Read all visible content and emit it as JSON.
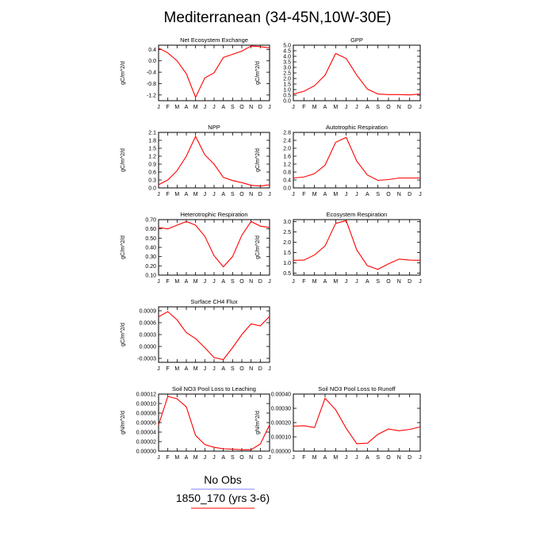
{
  "figure": {
    "title": "Mediterranean (34-45N,10W-30E)"
  },
  "months": [
    "J",
    "F",
    "M",
    "A",
    "M",
    "J",
    "J",
    "A",
    "S",
    "O",
    "N",
    "D",
    "J"
  ],
  "colors": {
    "model_line": "#ff0000",
    "obs_line": "#7f7fff",
    "axis": "#000000"
  },
  "legend": {
    "obs_label": "No Obs",
    "model_label": "1850_170 (yrs 3-6)"
  },
  "chart_data": [
    {
      "id": "nee",
      "type": "line",
      "title": "Net Ecosystem Exchange",
      "ylabel": "gC/m^2/d",
      "ylim": [
        -1.4,
        0.55
      ],
      "yticks": [
        -1.2,
        -0.8,
        -0.4,
        0.0,
        0.4
      ],
      "tick_format": "1",
      "x": [
        "J",
        "F",
        "M",
        "A",
        "M",
        "J",
        "J",
        "A",
        "S",
        "O",
        "N",
        "D",
        "J"
      ],
      "series": [
        {
          "values": [
            0.45,
            0.28,
            0.0,
            -0.45,
            -1.28,
            -0.6,
            -0.42,
            0.12,
            0.23,
            0.34,
            0.52,
            0.5,
            0.45
          ]
        }
      ]
    },
    {
      "id": "gpp",
      "type": "line",
      "title": "GPP",
      "ylabel": "gC/m^2/d",
      "ylim": [
        0.0,
        5.0
      ],
      "yticks": [
        0.0,
        0.5,
        1.0,
        1.5,
        2.0,
        2.5,
        3.0,
        3.5,
        4.0,
        4.5,
        5.0
      ],
      "tick_format": "1",
      "x": [
        "J",
        "F",
        "M",
        "A",
        "M",
        "J",
        "J",
        "A",
        "S",
        "O",
        "N",
        "D",
        "J"
      ],
      "series": [
        {
          "values": [
            0.6,
            0.85,
            1.35,
            2.3,
            4.25,
            3.8,
            2.3,
            1.05,
            0.6,
            0.55,
            0.55,
            0.52,
            0.6
          ]
        }
      ]
    },
    {
      "id": "npp",
      "type": "line",
      "title": "NPP",
      "ylabel": "gC/m^2/d",
      "ylim": [
        0.0,
        2.1
      ],
      "yticks": [
        0.0,
        0.3,
        0.6,
        0.9,
        1.2,
        1.5,
        1.8,
        2.1
      ],
      "tick_format": "1",
      "x": [
        "J",
        "F",
        "M",
        "A",
        "M",
        "J",
        "J",
        "A",
        "S",
        "O",
        "N",
        "D",
        "J"
      ],
      "series": [
        {
          "values": [
            0.12,
            0.3,
            0.65,
            1.2,
            1.95,
            1.25,
            0.9,
            0.4,
            0.28,
            0.2,
            0.1,
            0.07,
            0.12
          ]
        }
      ]
    },
    {
      "id": "ar",
      "type": "line",
      "title": "Autotrophic Respiration",
      "ylabel": "gC/m^2/d",
      "ylim": [
        0.0,
        2.8
      ],
      "yticks": [
        0.0,
        0.4,
        0.8,
        1.2,
        1.6,
        2.0,
        2.4,
        2.8
      ],
      "tick_format": "1",
      "x": [
        "J",
        "F",
        "M",
        "A",
        "M",
        "J",
        "J",
        "A",
        "S",
        "O",
        "N",
        "D",
        "J"
      ],
      "series": [
        {
          "values": [
            0.5,
            0.55,
            0.72,
            1.15,
            2.3,
            2.55,
            1.35,
            0.65,
            0.38,
            0.42,
            0.5,
            0.5,
            0.5
          ]
        }
      ]
    },
    {
      "id": "hr",
      "type": "line",
      "title": "Heterotrophic Respiration",
      "ylabel": "gC/m^2/d",
      "ylim": [
        0.1,
        0.7
      ],
      "yticks": [
        0.1,
        0.2,
        0.3,
        0.4,
        0.5,
        0.6,
        0.7
      ],
      "tick_format": "2",
      "x": [
        "J",
        "F",
        "M",
        "A",
        "M",
        "J",
        "J",
        "A",
        "S",
        "O",
        "N",
        "D",
        "J"
      ],
      "series": [
        {
          "values": [
            0.615,
            0.6,
            0.64,
            0.68,
            0.64,
            0.52,
            0.31,
            0.19,
            0.3,
            0.53,
            0.68,
            0.63,
            0.615
          ]
        }
      ]
    },
    {
      "id": "er",
      "type": "line",
      "title": "Ecosystem Respiration",
      "ylabel": "gC/m^2/d",
      "ylim": [
        0.4,
        3.1
      ],
      "yticks": [
        0.5,
        1.0,
        1.5,
        2.0,
        2.5,
        3.0
      ],
      "tick_format": "1",
      "x": [
        "J",
        "F",
        "M",
        "A",
        "M",
        "J",
        "J",
        "A",
        "S",
        "O",
        "N",
        "D",
        "J"
      ],
      "series": [
        {
          "values": [
            1.12,
            1.13,
            1.38,
            1.82,
            2.92,
            3.05,
            1.62,
            0.86,
            0.68,
            0.95,
            1.18,
            1.13,
            1.12
          ]
        }
      ]
    },
    {
      "id": "ch4",
      "type": "line",
      "title": "Surface CH4 Flux",
      "ylabel": "gC/m^2/d",
      "ylim": [
        -0.0004,
        0.001
      ],
      "yticks": [
        -0.0003,
        0.0,
        0.0003,
        0.0006,
        0.0009
      ],
      "tick_format": "4",
      "x": [
        "J",
        "F",
        "M",
        "A",
        "M",
        "J",
        "J",
        "A",
        "S",
        "O",
        "N",
        "D",
        "J"
      ],
      "series": [
        {
          "values": [
            0.00075,
            0.00088,
            0.00067,
            0.00035,
            0.0002,
            -3e-05,
            -0.00028,
            -0.00033,
            -3e-05,
            0.0003,
            0.00057,
            0.00052,
            0.00076
          ]
        }
      ]
    },
    {
      "id": "no3_leach",
      "type": "line",
      "title": "Soil NO3 Pool Loss to Leaching",
      "ylabel": "gN/m^2/d",
      "ylim": [
        0.0,
        0.00012
      ],
      "yticks": [
        0.0,
        2e-05,
        4e-05,
        6e-05,
        8e-05,
        0.0001,
        0.00012
      ],
      "tick_format": "5",
      "x": [
        "J",
        "F",
        "M",
        "A",
        "M",
        "J",
        "J",
        "A",
        "S",
        "O",
        "N",
        "D",
        "J"
      ],
      "series": [
        {
          "values": [
            5.5e-05,
            0.000115,
            0.00011,
            9.3e-05,
            3.3e-05,
            1.4e-05,
            8e-06,
            5e-06,
            4e-06,
            3e-06,
            3e-06,
            1.5e-05,
            5.5e-05
          ]
        }
      ]
    },
    {
      "id": "no3_runoff",
      "type": "line",
      "title": "Soil NO3 Pool Loss to Runoff",
      "ylabel": "gN/m^2/d",
      "ylim": [
        0.0,
        0.0004
      ],
      "yticks": [
        0.0,
        0.0001,
        0.0002,
        0.0003,
        0.0004
      ],
      "tick_format": "5",
      "x": [
        "J",
        "F",
        "M",
        "A",
        "M",
        "J",
        "J",
        "A",
        "S",
        "O",
        "N",
        "D",
        "J"
      ],
      "series": [
        {
          "values": [
            0.000175,
            0.000178,
            0.000165,
            0.00037,
            0.00029,
            0.00016,
            5.2e-05,
            5.5e-05,
            0.000118,
            0.000155,
            0.000143,
            0.000152,
            0.00017
          ]
        }
      ]
    }
  ]
}
